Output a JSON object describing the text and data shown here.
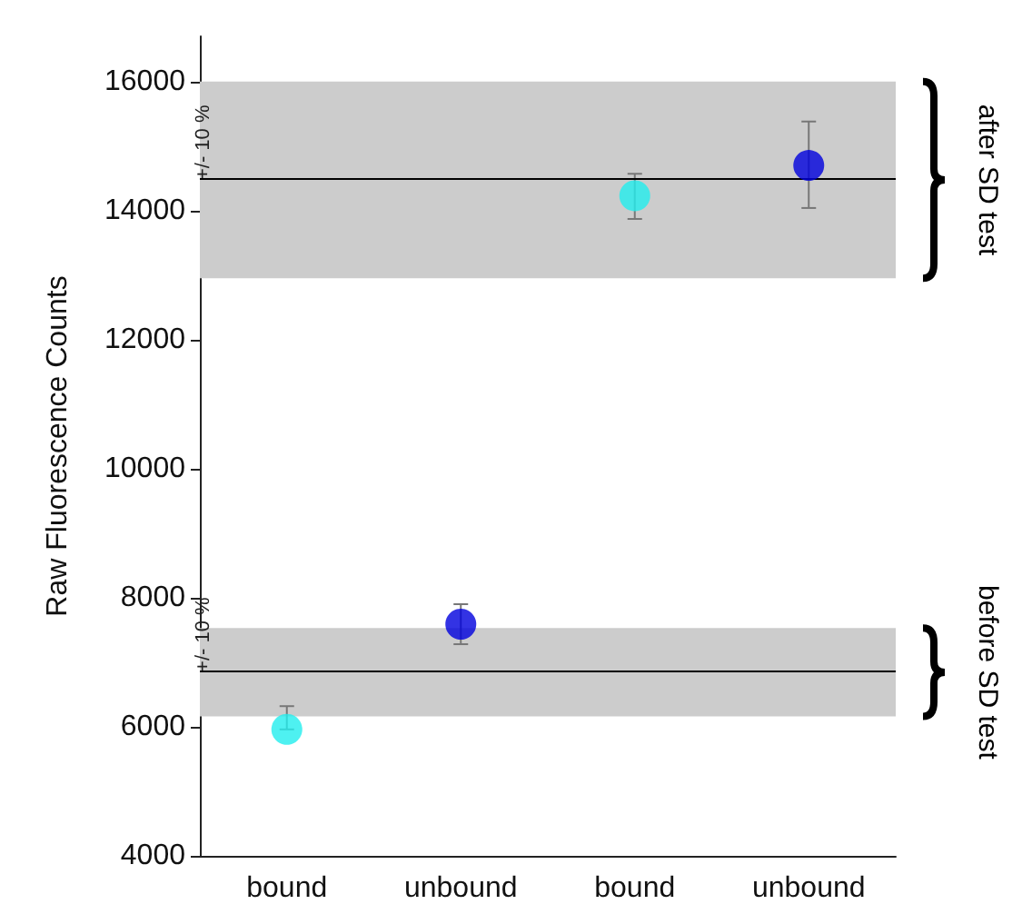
{
  "chart_data": {
    "type": "scatter",
    "ylabel": "Raw Fluorescence Counts",
    "categories": [
      "bound",
      "unbound",
      "bound",
      "unbound"
    ],
    "values": [
      5960,
      7590,
      14230,
      14700
    ],
    "colors": [
      "#22eeee",
      "#0000dd",
      "#22eeee",
      "#0000dd"
    ],
    "errors": [
      [
        5960,
        6320
      ],
      [
        7280,
        7900
      ],
      [
        13870,
        14570
      ],
      [
        14040,
        15380
      ]
    ],
    "ylim": [
      4000,
      16700
    ],
    "yticks": [
      4000,
      6000,
      8000,
      10000,
      12000,
      14000,
      16000
    ],
    "grid": false,
    "marker": "circle",
    "bands": [
      {
        "axis": "y",
        "from": 6160,
        "to": 7530,
        "label": "+/- 10 %",
        "color": "#cccccc"
      },
      {
        "axis": "y",
        "from": 12950,
        "to": 16000,
        "label": "+/- 10 %",
        "color": "#cccccc"
      }
    ],
    "ref_lines": [
      {
        "axis": "y",
        "value": 6860,
        "color": "#000000"
      },
      {
        "axis": "y",
        "value": 14500,
        "color": "#000000"
      }
    ],
    "annotations": [
      "after SD test",
      "before SD test"
    ]
  }
}
